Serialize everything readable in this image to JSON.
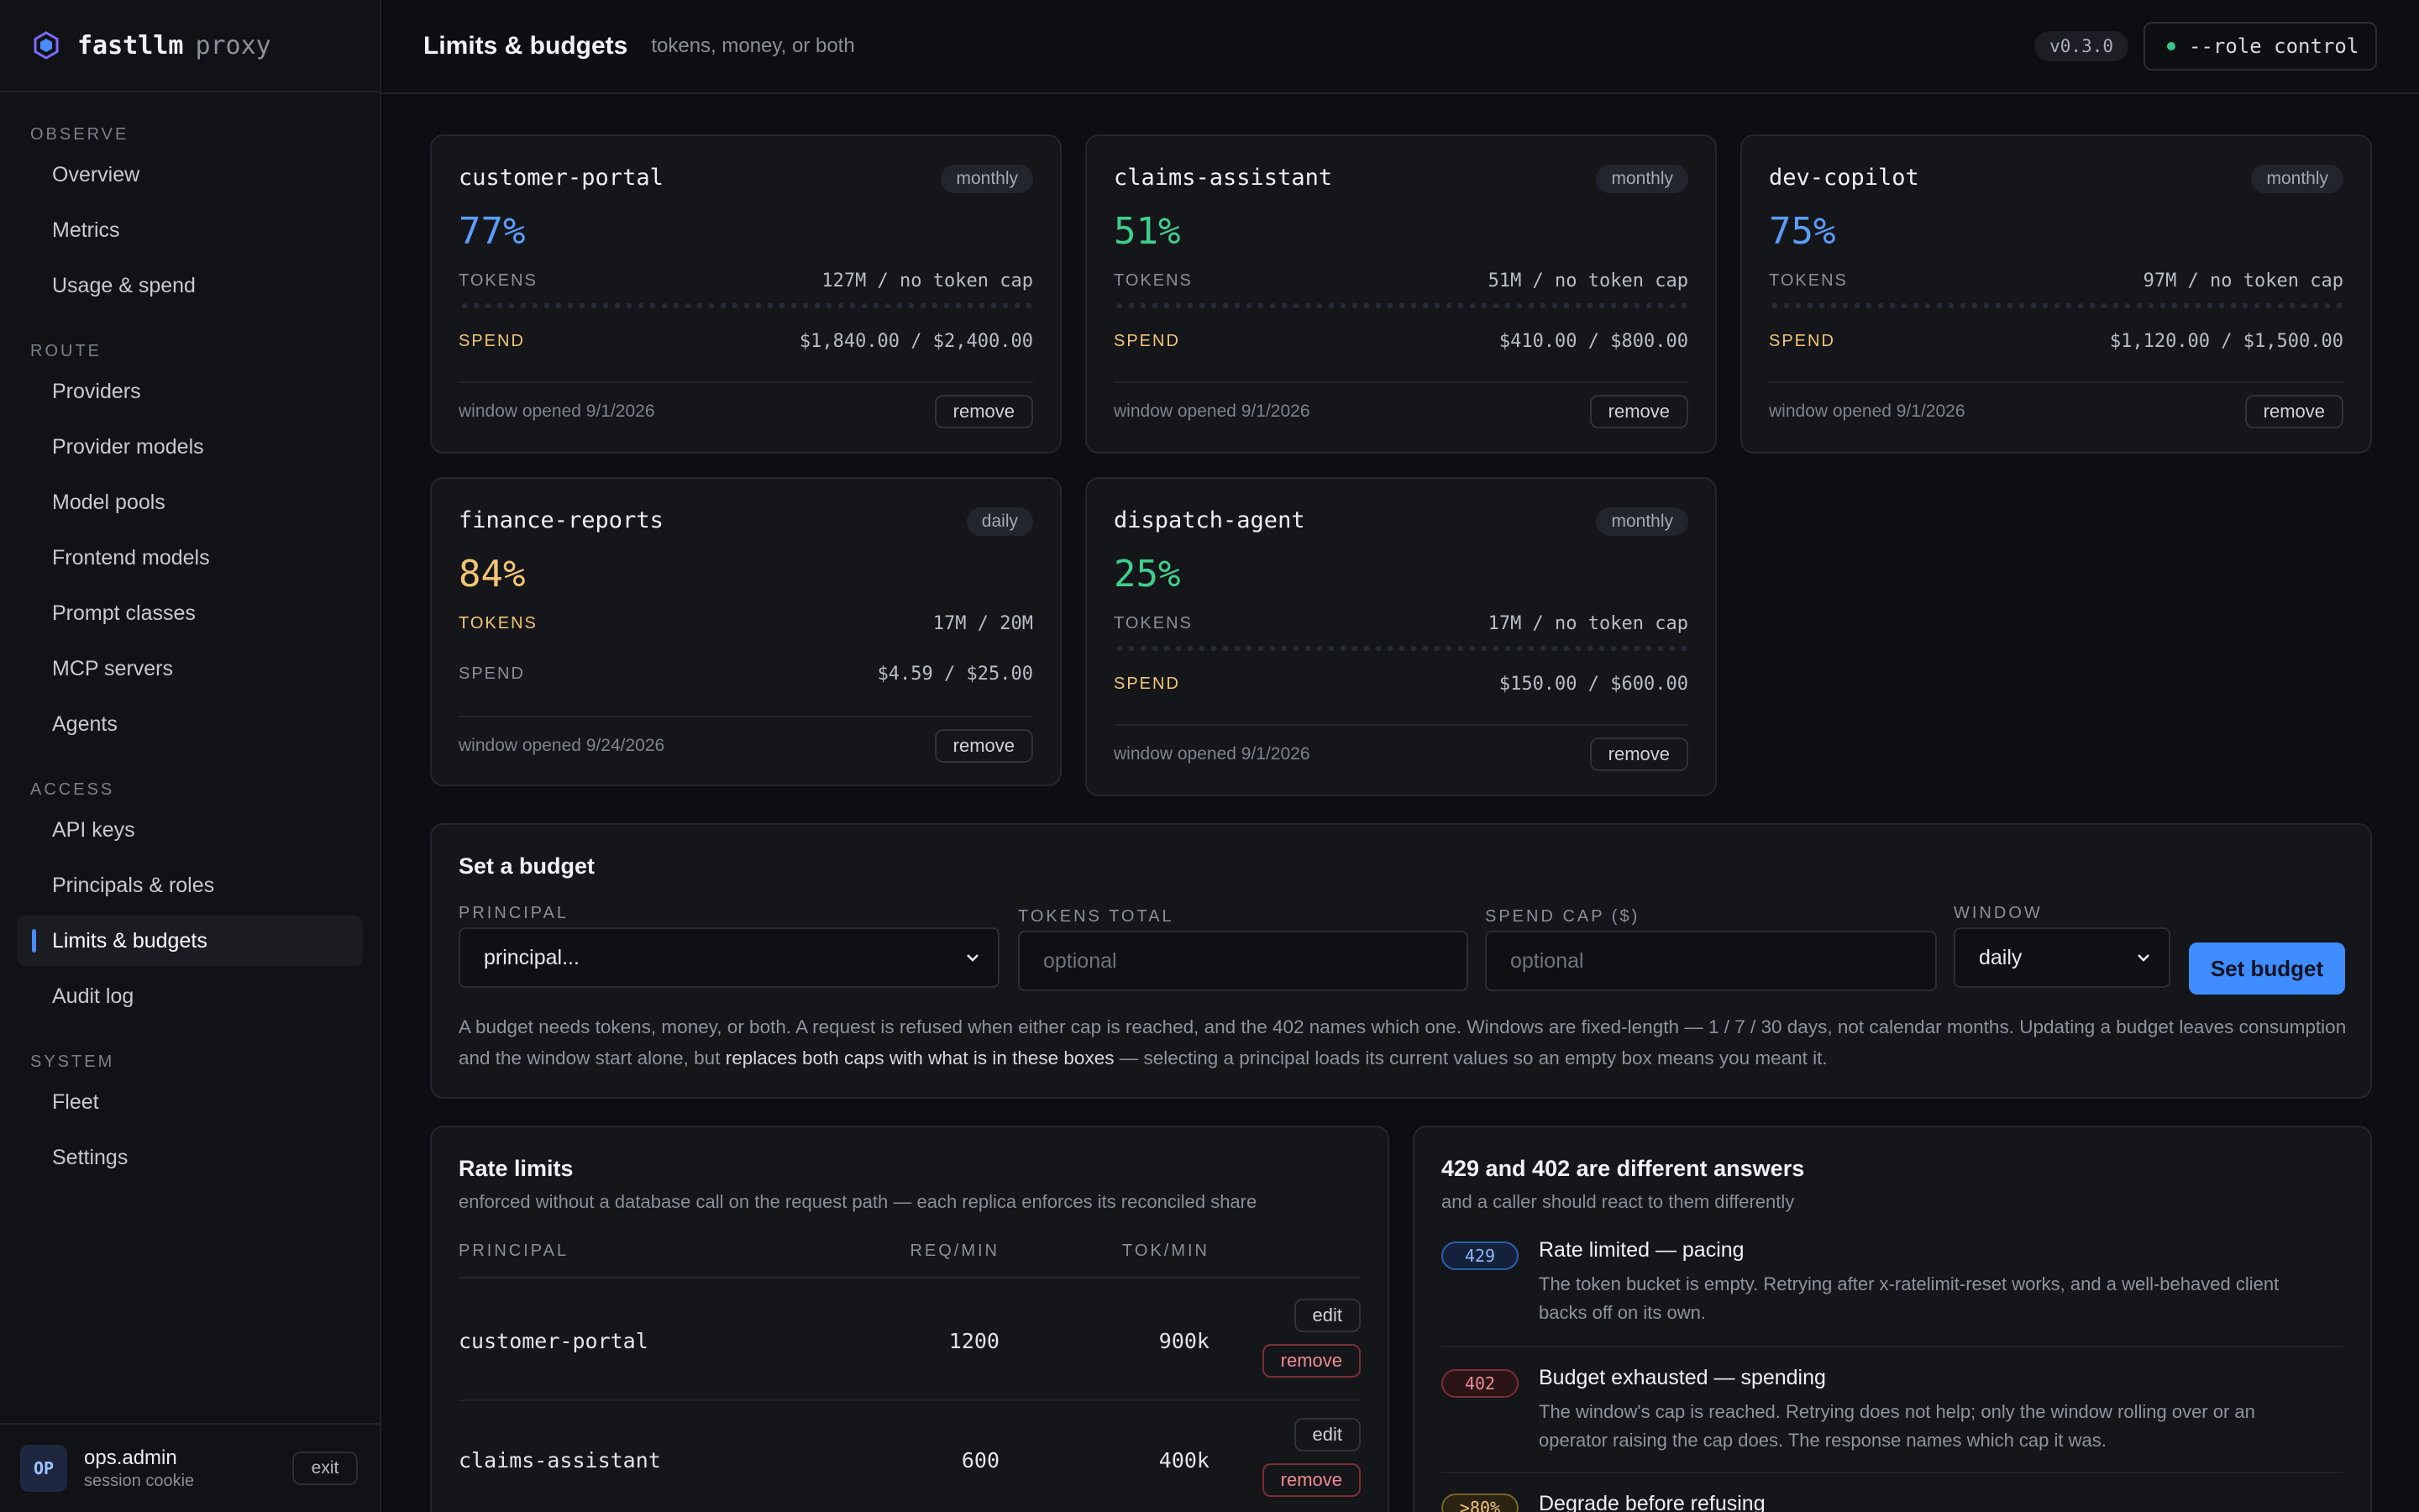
{
  "brand": {
    "name": "fastllm",
    "suffix": "proxy"
  },
  "sidebar": {
    "groups": [
      {
        "label": "OBSERVE",
        "items": [
          "Overview",
          "Metrics",
          "Usage & spend"
        ]
      },
      {
        "label": "ROUTE",
        "items": [
          "Providers",
          "Provider models",
          "Model pools",
          "Frontend models",
          "Prompt classes",
          "MCP servers",
          "Agents"
        ]
      },
      {
        "label": "ACCESS",
        "items": [
          "API keys",
          "Principals & roles",
          "Limits & budgets",
          "Audit log"
        ]
      },
      {
        "label": "SYSTEM",
        "items": [
          "Fleet",
          "Settings"
        ]
      }
    ],
    "active": "Limits & budgets"
  },
  "user": {
    "initials": "OP",
    "name": "ops.admin",
    "session": "session cookie",
    "exit_label": "exit"
  },
  "header": {
    "title": "Limits & budgets",
    "subtitle": "tokens, money, or both",
    "version": "v0.3.0",
    "role": "--role control"
  },
  "labels": {
    "tokens": "TOKENS",
    "spend": "SPEND",
    "remove": "remove",
    "edit": "edit"
  },
  "budgets": [
    {
      "name": "customer-portal",
      "window": "monthly",
      "percent": "77%",
      "tokens": "127M / no token cap",
      "spend": "$1,840.00 / $2,400.00",
      "opened": "window opened 9/1/2026"
    },
    {
      "name": "claims-assistant",
      "window": "monthly",
      "percent": "51%",
      "tokens": "51M / no token cap",
      "spend": "$410.00 / $800.00",
      "opened": "window opened 9/1/2026"
    },
    {
      "name": "dev-copilot",
      "window": "monthly",
      "percent": "75%",
      "tokens": "97M / no token cap",
      "spend": "$1,120.00 / $1,500.00",
      "opened": "window opened 9/1/2026"
    },
    {
      "name": "finance-reports",
      "window": "daily",
      "percent": "84%",
      "tokens": "17M / 20M",
      "spend": "$4.59 / $25.00",
      "opened": "window opened 9/24/2026"
    },
    {
      "name": "dispatch-agent",
      "window": "monthly",
      "percent": "25%",
      "tokens": "17M / no token cap",
      "spend": "$150.00 / $600.00",
      "opened": "window opened 9/1/2026"
    }
  ],
  "colors": {
    "blue": "#5b9dff",
    "green": "#3ecf8e",
    "amber": "#f2c573",
    "accent": "#3f8cff"
  },
  "set_budget": {
    "title": "Set a budget",
    "principal_label": "PRINCIPAL",
    "principal_value": "principal...",
    "tokens_label": "TOKENS TOTAL",
    "tokens_placeholder": "optional",
    "spend_label": "SPEND CAP ($)",
    "spend_placeholder": "optional",
    "window_label": "WINDOW",
    "window_value": "daily",
    "button": "Set budget",
    "help_a": "A budget needs tokens, money, or both. A request is refused when either cap is reached, and the 402 names which one. Windows are fixed-length — 1 / 7 / 30 days, not calendar months. Updating a budget leaves consumption and the window start alone, but ",
    "help_b": "replaces both caps with what is in these boxes",
    "help_c": " — selecting a principal loads its current values so an empty box means you meant it."
  },
  "rate_limits": {
    "title": "Rate limits",
    "subtitle": "enforced without a database call on the request path — each replica enforces its reconciled share",
    "columns": [
      "PRINCIPAL",
      "REQ/MIN",
      "TOK/MIN"
    ],
    "rows": [
      {
        "principal": "customer-portal",
        "req": "1200",
        "tok": "900k"
      },
      {
        "principal": "claims-assistant",
        "req": "600",
        "tok": "400k"
      }
    ]
  },
  "answers": {
    "title": "429 and 402 are different answers",
    "subtitle": "and a caller should react to them differently",
    "items": [
      {
        "code": "429",
        "title": "Rate limited — pacing",
        "desc": "The token bucket is empty. Retrying after x-ratelimit-reset works, and a well-behaved client backs off on its own."
      },
      {
        "code": "402",
        "title": "Budget exhausted — spending",
        "desc": "The window's cap is reached. Retrying does not help; only the window rolling over or an operator raising the cap does. The response names which cap it was."
      },
      {
        "code": ">80%",
        "title": "Degrade before refusing",
        "desc": ""
      }
    ]
  }
}
